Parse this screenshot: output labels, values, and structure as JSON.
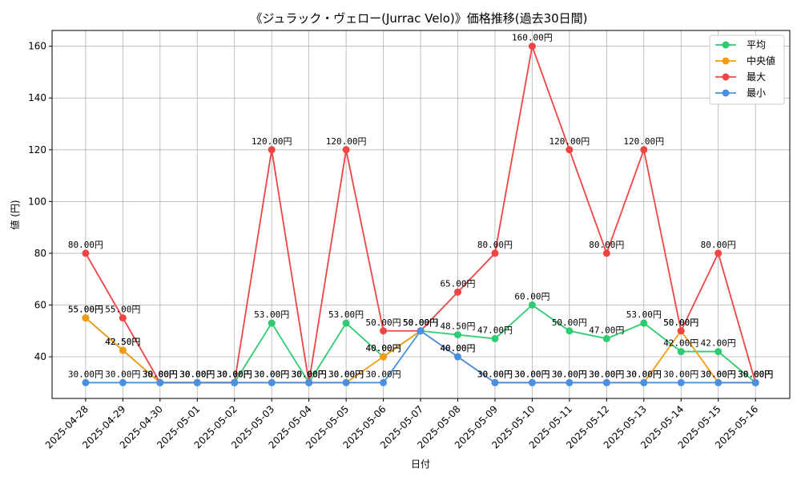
{
  "chart_data": {
    "type": "line",
    "title": "《ジュラック・ヴェロー(Jurrac Velo)》価格推移(過去30日間)",
    "xlabel": "日付",
    "ylabel": "値 (円)",
    "ylim": [
      23.9,
      166.1
    ],
    "yticks": [
      40,
      60,
      80,
      100,
      120,
      140,
      160
    ],
    "grid": true,
    "legend_position": "top-right",
    "value_suffix": "円",
    "categories": [
      "2025-04-28",
      "2025-04-29",
      "2025-04-30",
      "2025-05-01",
      "2025-05-02",
      "2025-05-03",
      "2025-05-04",
      "2025-05-05",
      "2025-05-06",
      "2025-05-07",
      "2025-05-08",
      "2025-05-09",
      "2025-05-10",
      "2025-05-11",
      "2025-05-12",
      "2025-05-13",
      "2025-05-14",
      "2025-05-15",
      "2025-05-16"
    ],
    "series": [
      {
        "name": "平均",
        "color": "#2ecc71",
        "values": [
          55,
          42.5,
          30,
          30,
          30,
          53,
          30,
          53,
          40,
          50,
          48.5,
          47,
          60,
          50,
          47,
          53,
          42,
          42,
          30
        ]
      },
      {
        "name": "中央値",
        "color": "#f39c12",
        "values": [
          55,
          42.5,
          30,
          30,
          30,
          30,
          30,
          30,
          40,
          50,
          40,
          30,
          30,
          30,
          30,
          30,
          50,
          30,
          30
        ]
      },
      {
        "name": "最大",
        "color": "#ef4444",
        "values": [
          80,
          55,
          30,
          30,
          30,
          120,
          30,
          120,
          50,
          50,
          65,
          80,
          160,
          120,
          80,
          120,
          50,
          80,
          30
        ]
      },
      {
        "name": "最小",
        "color": "#4a90e2",
        "values": [
          30,
          30,
          30,
          30,
          30,
          30,
          30,
          30,
          30,
          50,
          40,
          30,
          30,
          30,
          30,
          30,
          30,
          30,
          30
        ]
      }
    ]
  }
}
